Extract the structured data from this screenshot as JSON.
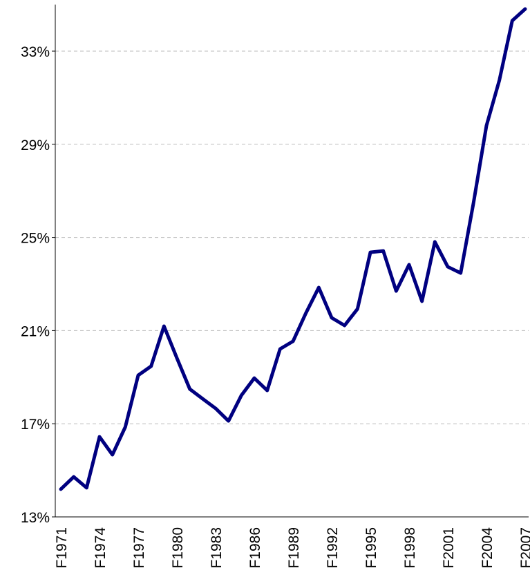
{
  "chart_data": {
    "type": "line",
    "categories": [
      "F1971",
      null,
      null,
      "F1974",
      null,
      null,
      "F1977",
      null,
      null,
      "F1980",
      null,
      null,
      "F1983",
      null,
      null,
      "F1986",
      null,
      null,
      "F1989",
      null,
      null,
      "F1992",
      null,
      null,
      "F1995",
      null,
      null,
      "F1998",
      null,
      null,
      "F2001",
      null,
      null,
      "F2004",
      null,
      null,
      "F2007"
    ],
    "values": [
      14.19,
      14.72,
      14.25,
      16.44,
      15.67,
      16.86,
      19.08,
      19.47,
      21.19,
      19.82,
      18.49,
      18.07,
      17.66,
      17.12,
      18.22,
      18.96,
      18.43,
      20.21,
      20.54,
      21.75,
      22.85,
      21.55,
      21.22,
      21.93,
      24.36,
      24.42,
      22.7,
      23.83,
      22.26,
      24.81,
      23.74,
      23.47,
      26.5,
      29.8,
      31.75,
      34.31,
      34.81
    ],
    "color": "#000080",
    "ylim": [
      13,
      35
    ],
    "yticks": [
      {
        "value": 13,
        "label": "13%"
      },
      {
        "value": 17,
        "label": "17%"
      },
      {
        "value": 21,
        "label": "21%"
      },
      {
        "value": 25,
        "label": "25%"
      },
      {
        "value": 29,
        "label": "29%"
      },
      {
        "value": 33,
        "label": "33%"
      }
    ],
    "grid": true
  }
}
